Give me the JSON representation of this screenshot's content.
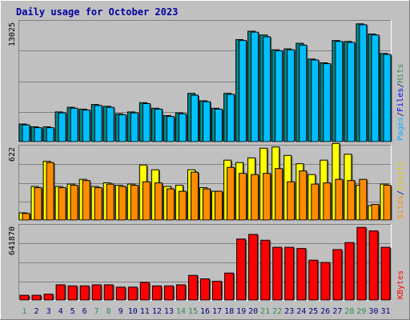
{
  "chart_data": {
    "title": "Daily usage for October 2023",
    "days": [
      "1",
      "2",
      "3",
      "4",
      "5",
      "6",
      "7",
      "8",
      "9",
      "10",
      "11",
      "12",
      "13",
      "14",
      "15",
      "16",
      "17",
      "18",
      "19",
      "20",
      "21",
      "22",
      "23",
      "24",
      "25",
      "26",
      "27",
      "28",
      "29",
      "30",
      "31"
    ],
    "weekend_days": [
      1,
      7,
      8,
      14,
      15,
      21,
      22,
      28,
      29
    ],
    "panels": [
      {
        "type": "bar",
        "ymax": 13025,
        "ymax_label": "13025",
        "legend": [
          {
            "text": "Pages",
            "color": "#00b3ff"
          },
          {
            "text": "/",
            "color": "#000080"
          },
          {
            "text": "Files",
            "color": "#0000ff"
          },
          {
            "text": "/",
            "color": "#000080"
          },
          {
            "text": "Hits",
            "color": "#2e8b57"
          }
        ],
        "series": [
          {
            "name": "Hits",
            "color": "#008b8b",
            "values": [
              1900,
              1600,
              1600,
              3200,
              3700,
              3500,
              4000,
              3800,
              3000,
              3200,
              4200,
              3600,
              2800,
              3100,
              5200,
              4400,
              3600,
              5200,
              11000,
              11900,
              11500,
              9900,
              10000,
              10600,
              8900,
              8500,
              10900,
              10800,
              12700,
              11600,
              9500
            ]
          },
          {
            "name": "Files",
            "color": "#00bfff",
            "values": [
              1800,
              1500,
              1500,
              3100,
              3600,
              3400,
              3900,
              3700,
              2900,
              3100,
              4100,
              3500,
              2700,
              3000,
              5000,
              4300,
              3500,
              5100,
              10900,
              11800,
              11300,
              9800,
              9900,
              10400,
              8800,
              8400,
              10800,
              10700,
              12600,
              11500,
              9400
            ]
          }
        ]
      },
      {
        "type": "bar",
        "ymax": 622,
        "ymax_label": "622",
        "legend": [
          {
            "text": "Sites",
            "color": "#ff8c00"
          },
          {
            "text": "/",
            "color": "#000080"
          },
          {
            "text": "Visits",
            "color": "#e6c800"
          }
        ],
        "series": [
          {
            "name": "Visits",
            "color": "#ffff00",
            "values": [
              60,
              280,
              490,
              280,
              300,
              340,
              280,
              310,
              290,
              300,
              460,
              420,
              280,
              290,
              420,
              270,
              240,
              500,
              480,
              520,
              600,
              610,
              540,
              470,
              380,
              500,
              640,
              550,
              290,
              120,
              300
            ]
          },
          {
            "name": "Sites",
            "color": "#ff8c00",
            "values": [
              55,
              270,
              480,
              270,
              290,
              330,
              270,
              300,
              280,
              290,
              320,
              310,
              260,
              240,
              400,
              260,
              240,
              440,
              390,
              380,
              390,
              430,
              320,
              410,
              300,
              310,
              340,
              330,
              340,
              130,
              290
            ]
          }
        ]
      },
      {
        "type": "bar",
        "ymax": 641870,
        "ymax_label": "641870",
        "legend": [
          {
            "text": "KBytes",
            "color": "#ff0000"
          }
        ],
        "series": [
          {
            "name": "KBytes",
            "color": "#ff0000",
            "values": [
              40000,
              40000,
              50000,
              130000,
              120000,
              120000,
              130000,
              130000,
              110000,
              110000,
              150000,
              120000,
              120000,
              130000,
              210000,
              180000,
              160000,
              230000,
              520000,
              560000,
              510000,
              450000,
              450000,
              440000,
              340000,
              320000,
              430000,
              490000,
              620000,
              590000,
              450000
            ]
          }
        ]
      }
    ]
  }
}
